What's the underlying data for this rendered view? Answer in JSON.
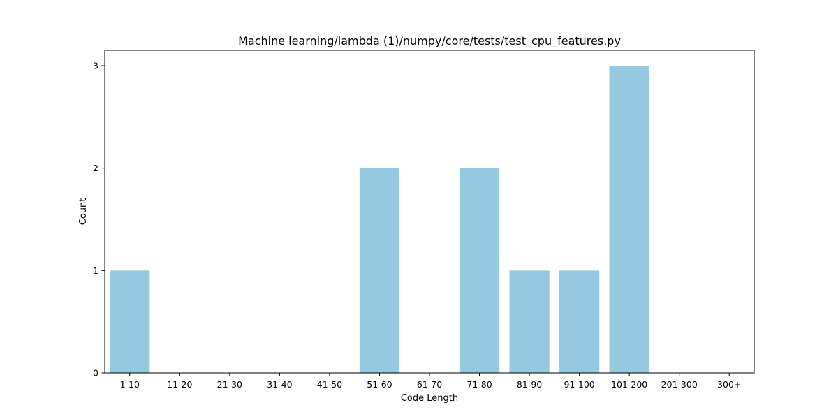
{
  "chart_data": {
    "type": "bar",
    "title": "Machine learning/lambda (1)/numpy/core/tests/test_cpu_features.py",
    "xlabel": "Code Length",
    "ylabel": "Count",
    "categories": [
      "1-10",
      "11-20",
      "21-30",
      "31-40",
      "41-50",
      "51-60",
      "61-70",
      "71-80",
      "81-90",
      "91-100",
      "101-200",
      "201-300",
      "300+"
    ],
    "values": [
      1,
      0,
      0,
      0,
      0,
      2,
      0,
      2,
      1,
      1,
      3,
      0,
      0
    ],
    "yticks": [
      0,
      1,
      2,
      3
    ],
    "ylim": [
      0,
      3.15
    ],
    "grid": false,
    "bar_color": "#95c9df"
  }
}
